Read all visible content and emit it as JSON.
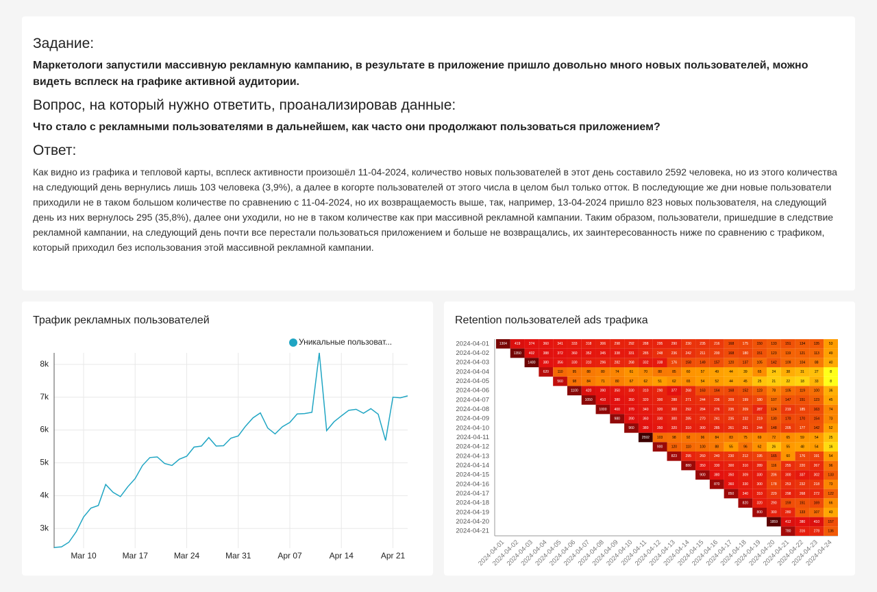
{
  "task": {
    "heading": "Задание:",
    "text": "Маркетологи запустили массивную рекламную кампанию, в результате в приложение пришло довольно много новых пользователей, можно видеть всплеск на графике активной аудитории."
  },
  "question": {
    "heading": "Вопрос, на который нужно ответить, проанализировав данные:",
    "text": "Что стало с рекламными пользователями в дальнейшем, как часто они продолжают пользоваться приложением?"
  },
  "answer": {
    "heading": "Ответ:",
    "text": "Как видно из графика и тепловой карты, всплеск активности произошёл 11-04-2024, количество новых пользователей в этот день составило 2592 человека, но из этого количества на следующий день вернулись лишь 103 человека (3,9%), а далее в когорте пользователей от этого числа в целом был только отток. В последующие же дни новые пользователи приходили не в таком большом количестве по сравнению с 11-04-2024, но их возвращаемость выше, так, например, 13-04-2024 пришло 823 новых пользователя, на следующий день из них вернулось 295 (35,8%), далее они уходили, но не в таком количестве как при массивной рекламной кампании. Таким образом, пользователи, пришедшие в следствие рекламной кампании, на следующий день почти все перестали пользоваться приложением и больше не возвращались, их заинтересованность ниже по сравнению с трафиком, который приходил без использования этой массивной рекламной кампании."
  },
  "chart_data": [
    {
      "type": "line",
      "title": "Трафик рекламных пользователей",
      "x": [
        "Mar 06",
        "Mar 07",
        "Mar 08",
        "Mar 09",
        "Mar 10",
        "Mar 11",
        "Mar 12",
        "Mar 13",
        "Mar 14",
        "Mar 15",
        "Mar 16",
        "Mar 17",
        "Mar 18",
        "Mar 19",
        "Mar 20",
        "Mar 21",
        "Mar 22",
        "Mar 23",
        "Mar 24",
        "Mar 25",
        "Mar 26",
        "Mar 27",
        "Mar 28",
        "Mar 29",
        "Mar 30",
        "Mar 31",
        "Apr 01",
        "Apr 02",
        "Apr 03",
        "Apr 04",
        "Apr 05",
        "Apr 06",
        "Apr 07",
        "Apr 08",
        "Apr 09",
        "Apr 10",
        "Apr 11",
        "Apr 12",
        "Apr 13",
        "Apr 14",
        "Apr 15",
        "Apr 16",
        "Apr 17",
        "Apr 18",
        "Apr 19",
        "Apr 20",
        "Apr 21",
        "Apr 22",
        "Apr 23"
      ],
      "xticks": [
        "Mar 10",
        "Mar 17",
        "Mar 24",
        "Mar 31",
        "Apr 07",
        "Apr 14",
        "Apr 21"
      ],
      "series": [
        {
          "name": "Уникальные пользоват...",
          "color": "#1fa5c3",
          "values": [
            2420,
            2440,
            2580,
            2900,
            3350,
            3620,
            3700,
            4340,
            4100,
            3970,
            4270,
            4520,
            4920,
            5160,
            5180,
            4980,
            4920,
            5110,
            5200,
            5480,
            5510,
            5770,
            5510,
            5520,
            5750,
            5820,
            6120,
            6370,
            6520,
            6060,
            5880,
            6100,
            6230,
            6490,
            6500,
            6540,
            8350,
            5980,
            6250,
            6430,
            6600,
            6630,
            6510,
            6650,
            6480,
            5680,
            7000,
            6980,
            7040
          ]
        }
      ],
      "ylim": [
        2400,
        8350
      ],
      "yticks": [
        {
          "value": 3000,
          "label": "3k"
        },
        {
          "value": 4000,
          "label": "4k"
        },
        {
          "value": 5000,
          "label": "5k"
        },
        {
          "value": 6000,
          "label": "6k"
        },
        {
          "value": 7000,
          "label": "7k"
        },
        {
          "value": 8000,
          "label": "8k"
        }
      ],
      "grid": true,
      "legend": "top-right"
    },
    {
      "type": "heatmap",
      "title": "Retention пользователей ads трафика",
      "x": [
        "2024-04-01",
        "2024-04-02",
        "2024-04-03",
        "2024-04-04",
        "2024-04-05",
        "2024-04-06",
        "2024-04-07",
        "2024-04-08",
        "2024-04-09",
        "2024-04-10",
        "2024-04-11",
        "2024-04-12",
        "2024-04-13",
        "2024-04-14",
        "2024-04-15",
        "2024-04-16",
        "2024-04-17",
        "2024-04-18",
        "2024-04-19",
        "2024-04-20",
        "2024-04-21",
        "2024-04-22",
        "2024-04-23",
        "2024-04-24"
      ],
      "y": [
        "2024-04-01",
        "2024-04-02",
        "2024-04-03",
        "2024-04-04",
        "2024-04-05",
        "2024-04-06",
        "2024-04-07",
        "2024-04-08",
        "2024-04-09",
        "2024-04-10",
        "2024-04-11",
        "2024-04-12",
        "2024-04-13",
        "2024-04-14",
        "2024-04-15",
        "2024-04-16",
        "2024-04-17",
        "2024-04-18",
        "2024-04-19",
        "2024-04-20",
        "2024-04-21"
      ],
      "color_scale": [
        "#ffff1a",
        "#ff9a00",
        "#e3110f",
        "#3d0000"
      ],
      "values": [
        [
          1304,
          419,
          374,
          360,
          341,
          333,
          318,
          306,
          298,
          292,
          288,
          295,
          290,
          230,
          235,
          216,
          168,
          175,
          150,
          133,
          151,
          134,
          135,
          53
        ],
        [
          null,
          1350,
          402,
          388,
          372,
          360,
          352,
          345,
          338,
          331,
          285,
          248,
          236,
          242,
          211,
          200,
          168,
          180,
          151,
          123,
          119,
          121,
          113,
          49
        ],
        [
          null,
          null,
          1480,
          380,
          356,
          330,
          310,
          296,
          282,
          268,
          332,
          338,
          176,
          158,
          149,
          157,
          120,
          137,
          105,
          142,
          109,
          104,
          88,
          40
        ],
        [
          null,
          null,
          null,
          620,
          110,
          95,
          88,
          80,
          74,
          61,
          70,
          88,
          85,
          60,
          57,
          49,
          44,
          39,
          65,
          24,
          38,
          31,
          27,
          8
        ],
        [
          null,
          null,
          null,
          null,
          560,
          98,
          84,
          71,
          80,
          67,
          62,
          51,
          62,
          65,
          54,
          52,
          44,
          45,
          25,
          21,
          22,
          18,
          33,
          8
        ],
        [
          null,
          null,
          null,
          null,
          null,
          1100,
          420,
          390,
          350,
          330,
          310,
          290,
          377,
          268,
          163,
          164,
          168,
          152,
          123,
          78,
          105,
          119,
          100,
          36
        ],
        [
          null,
          null,
          null,
          null,
          null,
          null,
          1050,
          410,
          380,
          350,
          320,
          300,
          288,
          271,
          244,
          236,
          209,
          199,
          180,
          107,
          147,
          151,
          123,
          45
        ],
        [
          null,
          null,
          null,
          null,
          null,
          null,
          null,
          1000,
          400,
          370,
          340,
          320,
          300,
          292,
          284,
          276,
          235,
          209,
          287,
          124,
          219,
          185,
          163,
          74
        ],
        [
          null,
          null,
          null,
          null,
          null,
          null,
          null,
          null,
          980,
          390,
          360,
          330,
          300,
          285,
          270,
          241,
          235,
          232,
          219,
          130,
          170,
          170,
          154,
          73
        ],
        [
          null,
          null,
          null,
          null,
          null,
          null,
          null,
          null,
          null,
          960,
          380,
          350,
          320,
          310,
          300,
          285,
          261,
          261,
          244,
          148,
          205,
          177,
          142,
          52
        ],
        [
          null,
          null,
          null,
          null,
          null,
          null,
          null,
          null,
          null,
          null,
          2592,
          103,
          98,
          92,
          96,
          84,
          83,
          75,
          69,
          72,
          65,
          59,
          54,
          25
        ],
        [
          null,
          null,
          null,
          null,
          null,
          null,
          null,
          null,
          null,
          null,
          null,
          900,
          120,
          110,
          100,
          88,
          55,
          96,
          62,
          26,
          55,
          48,
          54,
          16
        ],
        [
          null,
          null,
          null,
          null,
          null,
          null,
          null,
          null,
          null,
          null,
          null,
          null,
          823,
          295,
          260,
          240,
          230,
          212,
          195,
          165,
          60,
          176,
          191,
          54
        ],
        [
          null,
          null,
          null,
          null,
          null,
          null,
          null,
          null,
          null,
          null,
          null,
          null,
          null,
          880,
          350,
          330,
          300,
          310,
          289,
          116,
          255,
          220,
          267,
          96
        ],
        [
          null,
          null,
          null,
          null,
          null,
          null,
          null,
          null,
          null,
          null,
          null,
          null,
          null,
          null,
          900,
          380,
          350,
          309,
          330,
          206,
          300,
          337,
          302,
          133
        ],
        [
          null,
          null,
          null,
          null,
          null,
          null,
          null,
          null,
          null,
          null,
          null,
          null,
          null,
          null,
          null,
          870,
          360,
          330,
          300,
          178,
          253,
          232,
          218,
          73
        ],
        [
          null,
          null,
          null,
          null,
          null,
          null,
          null,
          null,
          null,
          null,
          null,
          null,
          null,
          null,
          null,
          null,
          850,
          340,
          310,
          229,
          298,
          268,
          272,
          122
        ],
        [
          null,
          null,
          null,
          null,
          null,
          null,
          null,
          null,
          null,
          null,
          null,
          null,
          null,
          null,
          null,
          null,
          null,
          820,
          320,
          290,
          159,
          151,
          169,
          66
        ],
        [
          null,
          null,
          null,
          null,
          null,
          null,
          null,
          null,
          null,
          null,
          null,
          null,
          null,
          null,
          null,
          null,
          null,
          null,
          800,
          300,
          280,
          133,
          107,
          43
        ],
        [
          null,
          null,
          null,
          null,
          null,
          null,
          null,
          null,
          null,
          null,
          null,
          null,
          null,
          null,
          null,
          null,
          null,
          null,
          null,
          1859,
          412,
          380,
          410,
          157
        ],
        [
          null,
          null,
          null,
          null,
          null,
          null,
          null,
          null,
          null,
          null,
          null,
          null,
          null,
          null,
          null,
          null,
          null,
          null,
          null,
          null,
          780,
          316,
          278,
          136
        ]
      ]
    }
  ]
}
